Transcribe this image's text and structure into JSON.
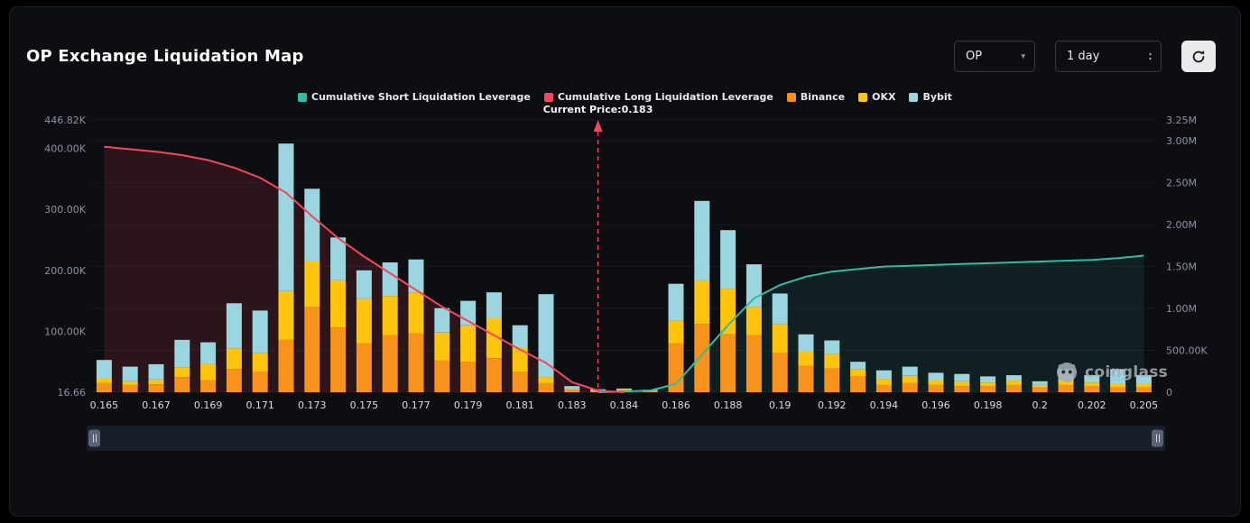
{
  "header": {
    "title": "OP Exchange Liquidation Map",
    "symbol_select": {
      "value": "OP"
    },
    "period_select": {
      "value": "1 day"
    }
  },
  "watermark": {
    "text": "coinglass"
  },
  "chart_data": {
    "type": "bar",
    "subtype": "stacked-bars-with-cumulative-lines",
    "title": "OP Exchange Liquidation Map",
    "legend_position": "top",
    "bar_slots": 41,
    "x_ticks": [
      {
        "index": 0,
        "label": "0.165"
      },
      {
        "index": 2,
        "label": "0.167"
      },
      {
        "index": 4,
        "label": "0.169"
      },
      {
        "index": 6,
        "label": "0.171"
      },
      {
        "index": 8,
        "label": "0.173"
      },
      {
        "index": 10,
        "label": "0.175"
      },
      {
        "index": 12,
        "label": "0.177"
      },
      {
        "index": 14,
        "label": "0.179"
      },
      {
        "index": 16,
        "label": "0.181"
      },
      {
        "index": 18,
        "label": "0.183"
      },
      {
        "index": 20,
        "label": "0.184"
      },
      {
        "index": 22,
        "label": "0.186"
      },
      {
        "index": 24,
        "label": "0.188"
      },
      {
        "index": 26,
        "label": "0.19"
      },
      {
        "index": 28,
        "label": "0.192"
      },
      {
        "index": 30,
        "label": "0.194"
      },
      {
        "index": 32,
        "label": "0.196"
      },
      {
        "index": 34,
        "label": "0.198"
      },
      {
        "index": 36,
        "label": "0.2"
      },
      {
        "index": 38,
        "label": "0.202"
      },
      {
        "index": 40,
        "label": "0.205"
      }
    ],
    "current_price": {
      "label": "Current Price:0.183",
      "index": 19,
      "color": "#F6465D"
    },
    "left_axis": {
      "max": 446820,
      "ticks": [
        {
          "label": "16.66",
          "value": 0
        },
        {
          "label": "100.00K",
          "value": 100000
        },
        {
          "label": "200.00K",
          "value": 200000
        },
        {
          "label": "300.00K",
          "value": 300000
        },
        {
          "label": "400.00K",
          "value": 400000
        },
        {
          "label": "446.82K",
          "value": 446820
        }
      ]
    },
    "right_axis": {
      "max": 3250000,
      "ticks": [
        {
          "label": "0",
          "value": 0
        },
        {
          "label": "500.00K",
          "value": 500000
        },
        {
          "label": "1.00M",
          "value": 1000000
        },
        {
          "label": "1.50M",
          "value": 1500000
        },
        {
          "label": "2.00M",
          "value": 2000000
        },
        {
          "label": "2.50M",
          "value": 2500000
        },
        {
          "label": "3.00M",
          "value": 3000000
        },
        {
          "label": "3.25M",
          "value": 3250000
        }
      ]
    },
    "bar_series": [
      {
        "name": "Binance",
        "color": "#F7931A",
        "axis": "left",
        "values": [
          15000,
          12000,
          13000,
          25000,
          20000,
          38000,
          34000,
          86000,
          140000,
          106000,
          80000,
          94000,
          97000,
          52000,
          50000,
          56000,
          33000,
          15000,
          4000,
          2000,
          3000,
          1500,
          80000,
          112000,
          95000,
          94000,
          64000,
          43000,
          39000,
          26000,
          12000,
          15000,
          12000,
          10000,
          10000,
          12000,
          8000,
          12000,
          10000,
          8000,
          8000
        ]
      },
      {
        "name": "OKX",
        "color": "#FFC40B",
        "axis": "left",
        "values": [
          8000,
          6000,
          8000,
          16000,
          26000,
          34000,
          30000,
          80000,
          76000,
          78000,
          74000,
          64000,
          67000,
          46000,
          60000,
          66000,
          41000,
          10000,
          2000,
          1000,
          1000,
          1000,
          38000,
          72000,
          75000,
          46000,
          48000,
          25000,
          24000,
          12000,
          10000,
          12000,
          8000,
          8000,
          6000,
          8000,
          4000,
          8000,
          6000,
          6000,
          6000
        ]
      },
      {
        "name": "Bybit",
        "color": "#9BD5E0",
        "axis": "left",
        "values": [
          30000,
          24000,
          25000,
          45000,
          36000,
          74000,
          70000,
          242000,
          118000,
          70000,
          46000,
          55000,
          54000,
          40000,
          40000,
          42000,
          36000,
          136000,
          4000,
          2000,
          2000,
          1500,
          60000,
          130000,
          96000,
          70000,
          50000,
          27000,
          22000,
          12000,
          14000,
          15000,
          12000,
          12000,
          10000,
          8000,
          6000,
          18000,
          12000,
          24000,
          14000
        ]
      }
    ],
    "lines": [
      {
        "id": "cumulative-short",
        "name": "Cumulative Short Liquidation Leverage",
        "color": "#2EBDA5",
        "fill": "rgba(46,189,165,0.10)",
        "axis": "right",
        "values": [
          null,
          null,
          null,
          null,
          null,
          null,
          null,
          null,
          null,
          null,
          null,
          null,
          null,
          null,
          null,
          null,
          null,
          null,
          null,
          0,
          10000,
          20000,
          100000,
          450000,
          800000,
          1120000,
          1280000,
          1380000,
          1440000,
          1470000,
          1500000,
          1510000,
          1520000,
          1530000,
          1540000,
          1550000,
          1560000,
          1570000,
          1580000,
          1600000,
          1630000
        ]
      },
      {
        "id": "cumulative-long",
        "name": "Cumulative Long Liquidation Leverage",
        "color": "#F6465D",
        "fill": "rgba(246,70,93,0.13)",
        "axis": "right",
        "values": [
          2930000,
          2900000,
          2870000,
          2830000,
          2770000,
          2680000,
          2560000,
          2380000,
          2100000,
          1840000,
          1620000,
          1420000,
          1220000,
          1020000,
          850000,
          680000,
          510000,
          350000,
          120000,
          20000,
          0,
          null,
          null,
          null,
          null,
          null,
          null,
          null,
          null,
          null,
          null,
          null,
          null,
          null,
          null,
          null,
          null,
          null,
          null,
          null,
          null
        ]
      }
    ]
  }
}
